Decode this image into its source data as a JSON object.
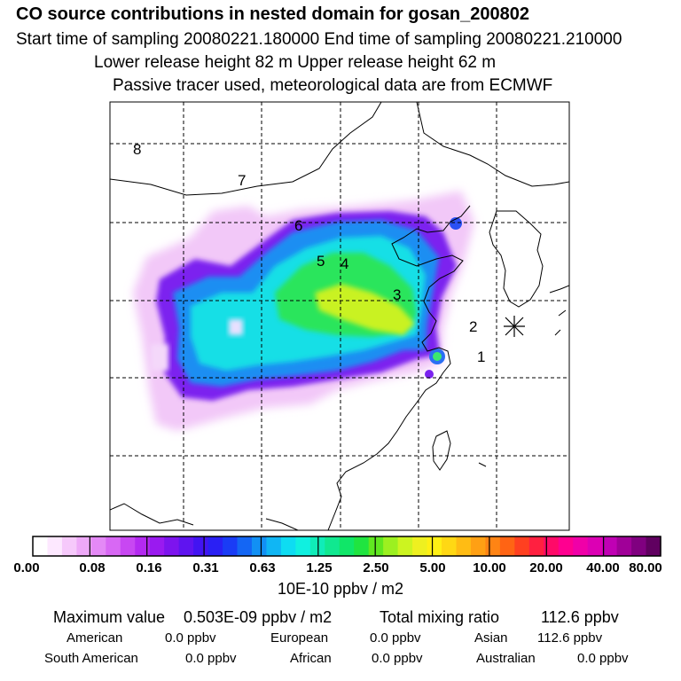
{
  "header": {
    "title": "CO  source contributions in nested domain for gosan_200802",
    "sampling_line": "Start time of sampling 20080221.180000     End time of sampling 20080221.210000",
    "release_line": "Lower release height   82 m          Upper release height   62 m",
    "info_line": "Passive tracer used, meteorological data are from ECMWF"
  },
  "map": {
    "region_labels": [
      "1",
      "2",
      "3",
      "4",
      "5",
      "6",
      "7",
      "8"
    ],
    "receptor_marker": "asterisk-icon"
  },
  "colorbar": {
    "tick_labels": [
      "0.00",
      "0.08",
      "0.16",
      "0.31",
      "0.63",
      "1.25",
      "2.50",
      "5.00",
      "10.00",
      "20.00",
      "40.00",
      "80.00"
    ],
    "unit": "10E-10 ppbv / m2",
    "colors": [
      "#ffffff",
      "#fde8ff",
      "#f6c9fb",
      "#eea9f8",
      "#e489f6",
      "#d868f4",
      "#c847f2",
      "#b42af1",
      "#9a1af0",
      "#7d14ee",
      "#5f14f0",
      "#4214f2",
      "#2a20f4",
      "#1a3cf6",
      "#1466f4",
      "#1290f4",
      "#10b6f4",
      "#0edcf2",
      "#10f0e0",
      "#10ecb8",
      "#10e890",
      "#10e668",
      "#20e440",
      "#60e820",
      "#9cf020",
      "#ccf420",
      "#eef020",
      "#fff014",
      "#ffd814",
      "#ffbc14",
      "#ffa014",
      "#ff8414",
      "#ff6414",
      "#ff4020",
      "#ff2040",
      "#ff0a68",
      "#ff0090",
      "#f000a8",
      "#dc00b4",
      "#c000b4",
      "#a00098",
      "#800080",
      "#600060"
    ]
  },
  "stats": {
    "maximum_label": "Maximum value",
    "maximum_value": "0.503E-09 ppbv / m2",
    "total_label": "Total mixing ratio",
    "total_value": "112.6 ppbv",
    "american_label": "American",
    "american_value": "0.0 ppbv",
    "european_label": "European",
    "european_value": "0.0 ppbv",
    "asian_label": "Asian",
    "asian_value": "112.6 ppbv",
    "south_american_label": "South American",
    "south_american_value": "0.0 ppbv",
    "african_label": "African",
    "african_value": "0.0 ppbv",
    "australian_label": "Australian",
    "australian_value": "0.0 ppbv"
  }
}
